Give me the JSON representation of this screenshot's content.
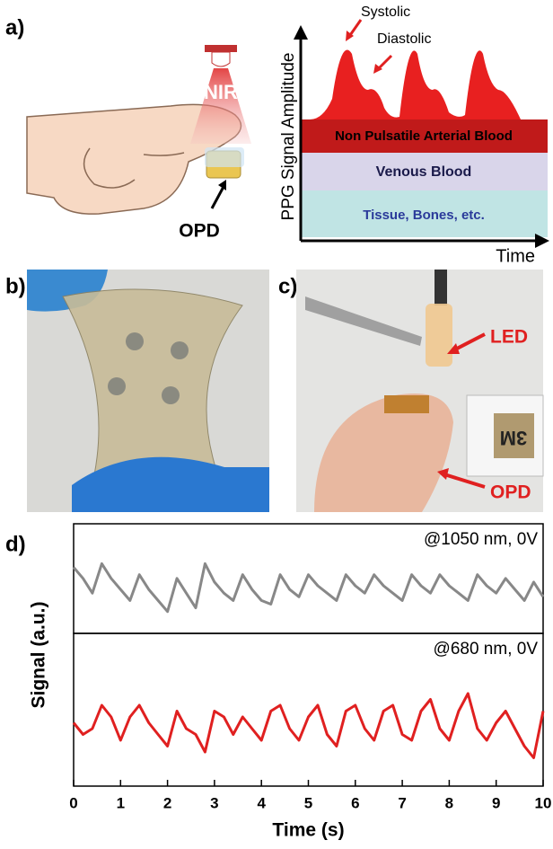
{
  "panels": {
    "a": {
      "label": "a)",
      "nir": "NIR",
      "opd": "OPD",
      "systolic": "Systolic",
      "diastolic": "Diastolic",
      "bands": [
        "Non Pulsatile Arterial Blood",
        "Venous Blood",
        "Tissue, Bones, etc."
      ],
      "ylabel": "PPG Signal Amplitude",
      "xlabel": "Time"
    },
    "b": {
      "label": "b)"
    },
    "c": {
      "label": "c)",
      "led": "LED",
      "opd": "OPD",
      "tape": "3M"
    },
    "d": {
      "label": "d)"
    }
  },
  "chart_data": [
    {
      "type": "line",
      "ylabel": "Signal (a.u.)",
      "xlim": [
        0,
        10
      ],
      "ylim": [
        0,
        10
      ],
      "x": [
        0,
        0.2,
        0.4,
        0.6,
        0.8,
        1,
        1.2,
        1.4,
        1.6,
        1.8,
        2,
        2.2,
        2.4,
        2.6,
        2.8,
        3,
        3.2,
        3.4,
        3.6,
        3.8,
        4,
        4.2,
        4.4,
        4.6,
        4.8,
        5,
        5.2,
        5.4,
        5.6,
        5.8,
        6,
        6.2,
        6.4,
        6.6,
        6.8,
        7,
        7.2,
        7.4,
        7.6,
        7.8,
        8,
        8.2,
        8.4,
        8.6,
        8.8,
        9,
        9.2,
        9.4,
        9.6,
        9.8,
        10
      ],
      "series": [
        {
          "name": "@1050 nm, 0V",
          "color": "#888888",
          "values": [
            7.5,
            6,
            4,
            8,
            6,
            4.5,
            3,
            6.5,
            4.5,
            3,
            1.5,
            6,
            4,
            2,
            8,
            5.5,
            4,
            3,
            6.5,
            4.5,
            3,
            2.5,
            6.5,
            4.5,
            3.5,
            6.5,
            5,
            4,
            3,
            6.5,
            5,
            4,
            6.5,
            5,
            4,
            3,
            6.5,
            5,
            4,
            6.5,
            5,
            4,
            3,
            6.5,
            5,
            4,
            6,
            4.5,
            3,
            5.5,
            3.5
          ]
        }
      ]
    },
    {
      "type": "line",
      "xlabel": "Time (s)",
      "xlim": [
        0,
        10
      ],
      "ylim": [
        0,
        10
      ],
      "xticks": [
        0,
        1,
        2,
        3,
        4,
        5,
        6,
        7,
        8,
        9,
        10
      ],
      "x": [
        0,
        0.2,
        0.4,
        0.6,
        0.8,
        1,
        1.2,
        1.4,
        1.6,
        1.8,
        2,
        2.2,
        2.4,
        2.6,
        2.8,
        3,
        3.2,
        3.4,
        3.6,
        3.8,
        4,
        4.2,
        4.4,
        4.6,
        4.8,
        5,
        5.2,
        5.4,
        5.6,
        5.8,
        6,
        6.2,
        6.4,
        6.6,
        6.8,
        7,
        7.2,
        7.4,
        7.6,
        7.8,
        8,
        8.2,
        8.4,
        8.6,
        8.8,
        9,
        9.2,
        9.4,
        9.6,
        9.8,
        10
      ],
      "series": [
        {
          "name": "@680 nm, 0V",
          "color": "#e02020",
          "values": [
            4.5,
            3.5,
            4,
            6,
            5,
            3,
            5,
            6,
            4.5,
            3.5,
            2.5,
            5.5,
            4,
            3.5,
            2,
            5.5,
            5,
            3.5,
            5,
            4,
            3,
            5.5,
            6,
            4,
            3,
            5,
            6,
            3.5,
            2.5,
            5.5,
            6,
            4,
            3,
            5.5,
            6,
            3.5,
            3,
            5.5,
            6.5,
            4,
            3,
            5.5,
            7,
            4,
            3,
            4.5,
            5.5,
            4,
            2.5,
            1.5,
            5.5
          ]
        }
      ]
    }
  ]
}
